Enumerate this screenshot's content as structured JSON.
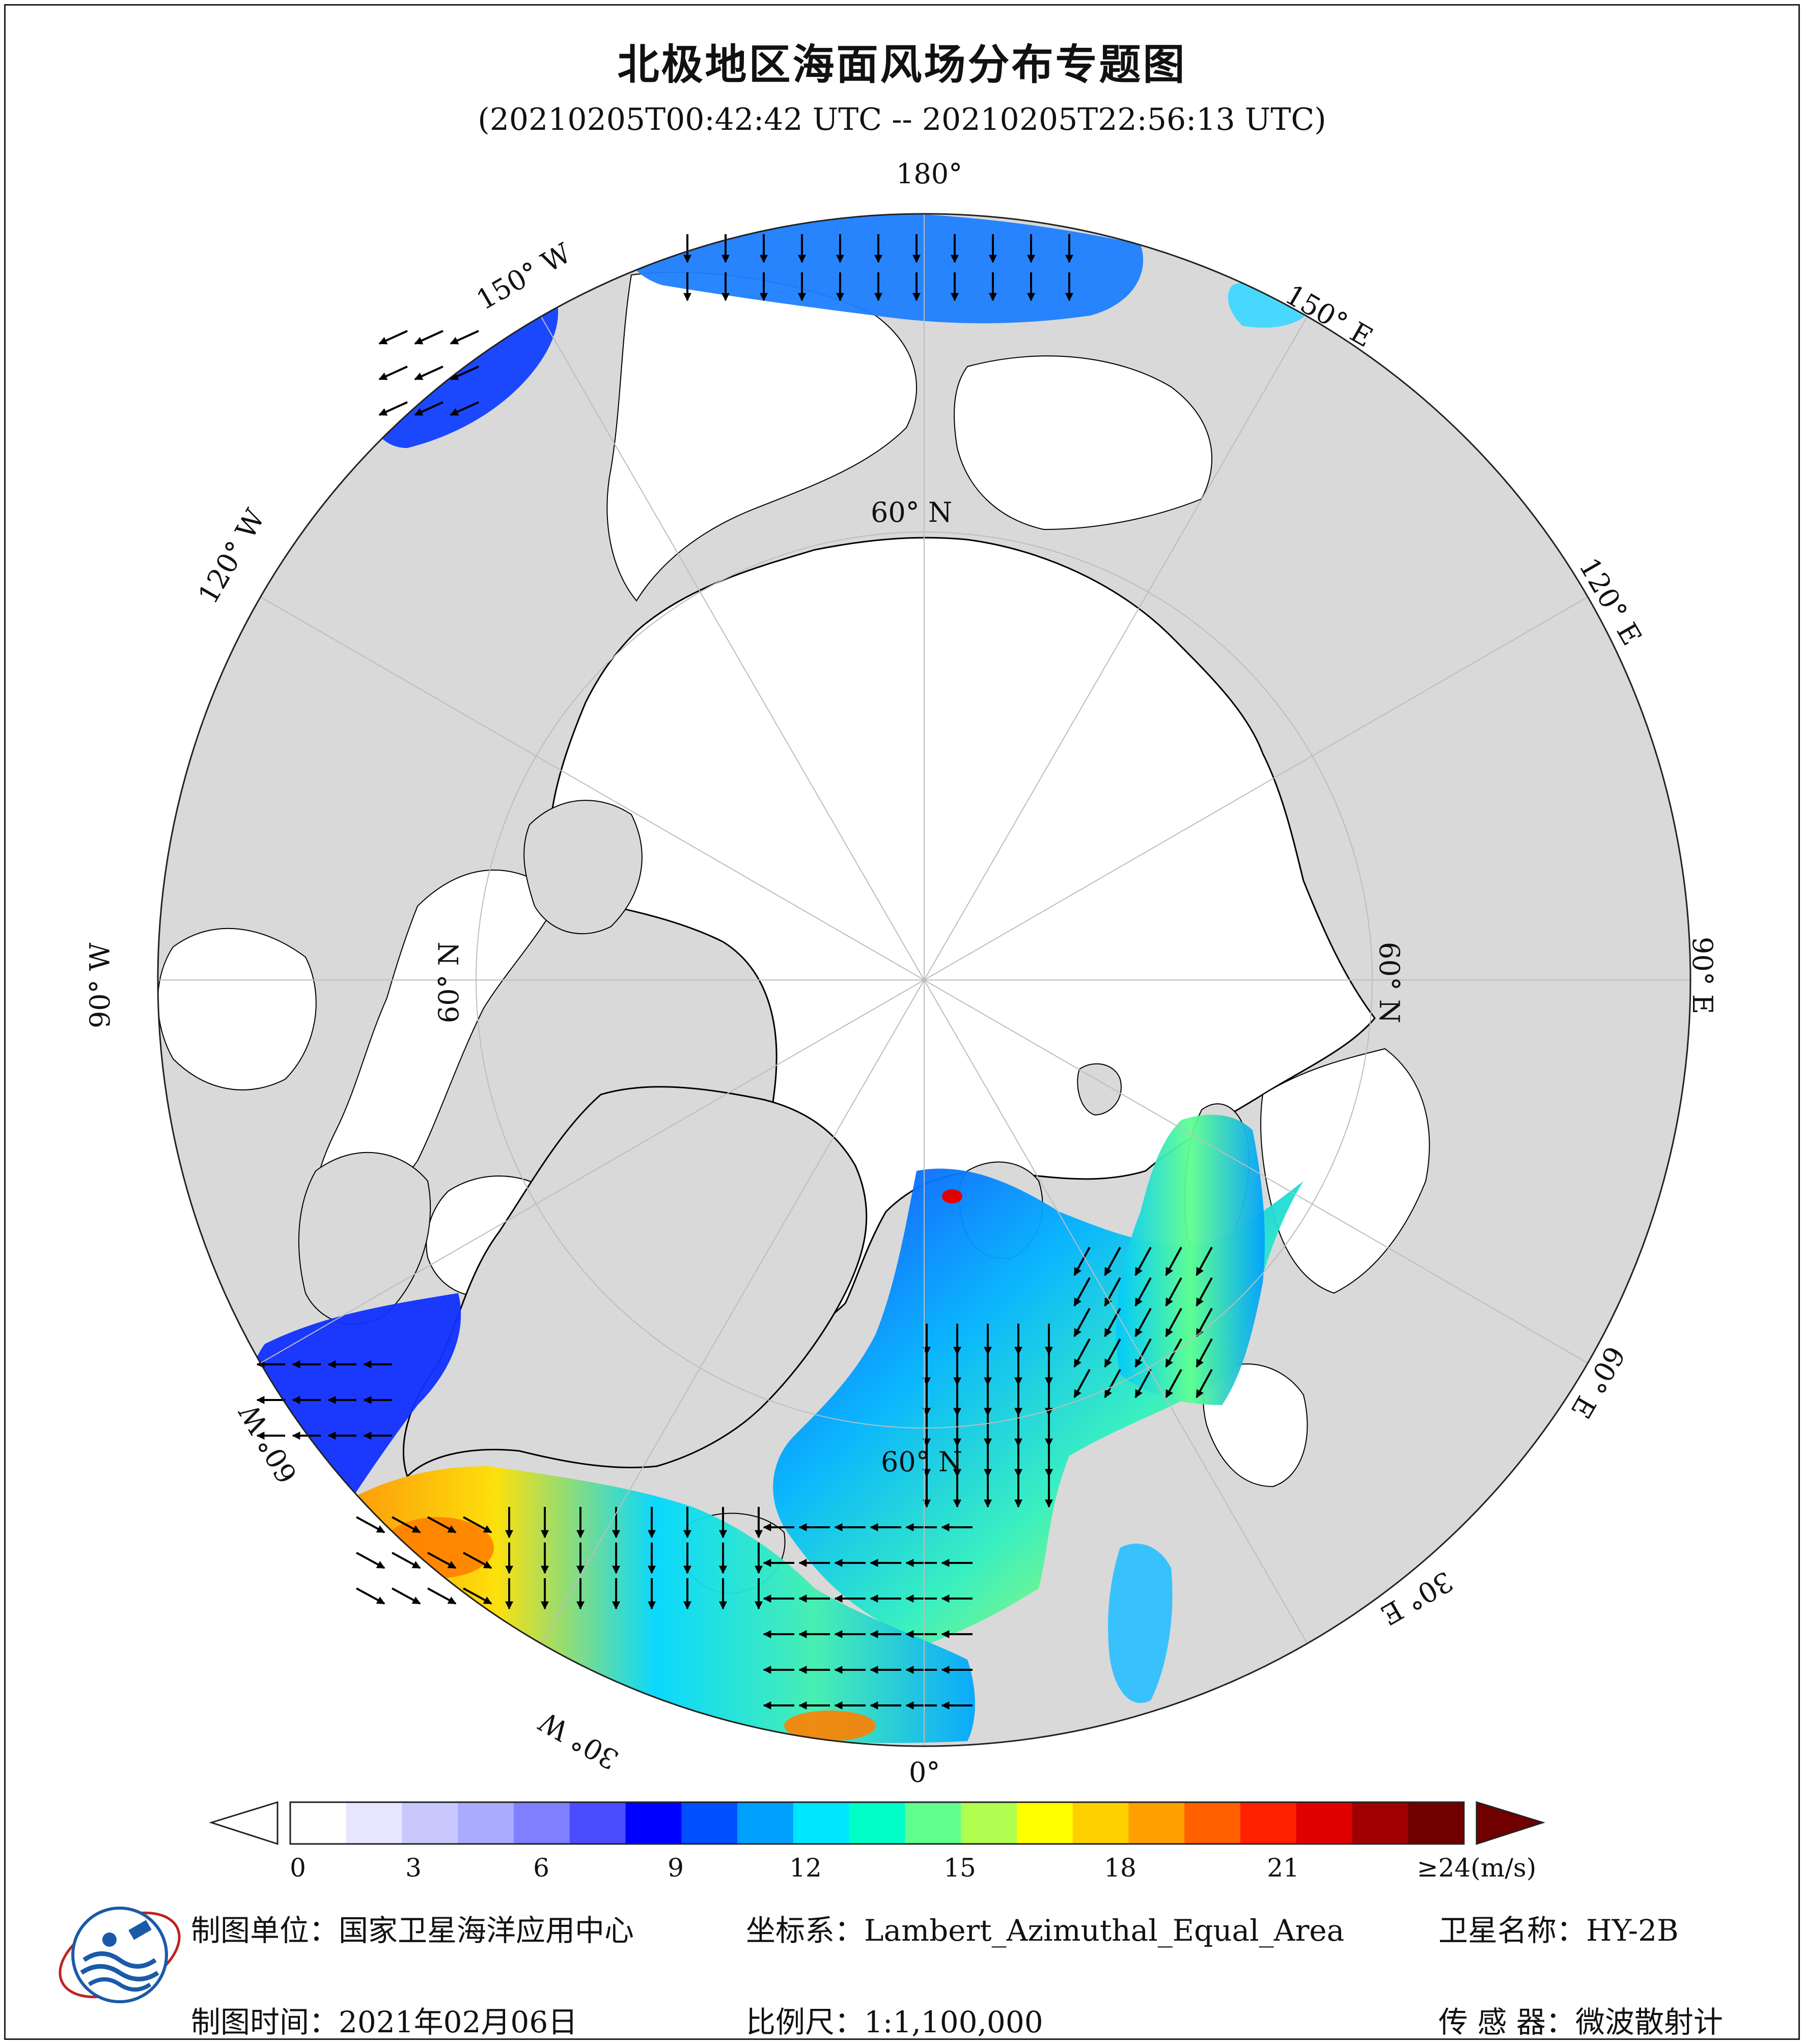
{
  "title": "北极地区海面风场分布专题图",
  "subtitle": "(20210205T00:42:42 UTC -- 20210205T22:56:13 UTC)",
  "longitude_labels": {
    "lon_180": "180°",
    "lon_150e": "150° E",
    "lon_120e": "120° E",
    "lon_90e": "90° E",
    "lon_60e": "60° E",
    "lon_30e": "30° E",
    "lon_0": "0°",
    "lon_30w": "30° W",
    "lon_60w": "60° W",
    "lon_90w": "90° W",
    "lon_120w": "120° W",
    "lon_150w": "150° W"
  },
  "latitude_labels": {
    "lat_top": "60° N",
    "lat_right": "60° N",
    "lat_bottom": "60° N",
    "lat_left": "60° N"
  },
  "colorbar": {
    "ticks": [
      "0",
      "3",
      "6",
      "9",
      "12",
      "15",
      "18",
      "21",
      "≥24(m/s)"
    ],
    "min": 0,
    "max": 24,
    "unit": "m/s",
    "colors": [
      "#ffffff",
      "#e6e6ff",
      "#c8c8ff",
      "#aaaaff",
      "#7f7fff",
      "#4c4cff",
      "#0000ff",
      "#0050ff",
      "#00a0ff",
      "#00e6ff",
      "#00ffc8",
      "#60ff90",
      "#b0ff50",
      "#ffff00",
      "#ffd000",
      "#ffa000",
      "#ff6000",
      "#ff2000",
      "#e00000",
      "#a00000",
      "#700000"
    ]
  },
  "map_colors": {
    "land": "#d9d9d9",
    "ice": "#ffffff",
    "coast": "#000000",
    "grid": "#bdbdbd"
  },
  "footer": {
    "unit_label": "制图单位：",
    "unit_value": "国家卫星海洋应用中心",
    "date_label": "制图时间：",
    "date_value": "2021年02月06日",
    "coord_label": "坐标系：",
    "coord_value": "Lambert_Azimuthal_Equal_Area",
    "scale_label": "比例尺：",
    "scale_value": "1:1,100,000",
    "sat_label": "卫星名称：",
    "sat_value": "HY-2B",
    "sensor_label": "传 感 器：",
    "sensor_value": "微波散射计"
  },
  "logo": {
    "name": "national-satellite-ocean-application-service-logo",
    "emblem_text": "国家卫星海洋应用中心"
  }
}
